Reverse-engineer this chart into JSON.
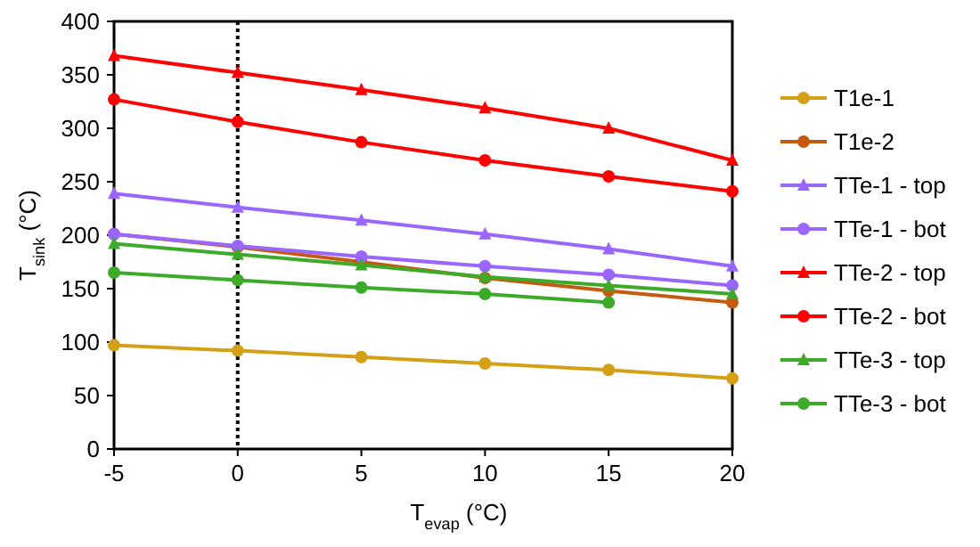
{
  "chart_data": {
    "type": "line",
    "xlabel": "T$_{evap}$ (°C)",
    "ylabel": "T$_{sink}$ (°C)",
    "x": [
      -5,
      0,
      5,
      10,
      15,
      20
    ],
    "xlim": [
      -5,
      20
    ],
    "xticks": [
      -5,
      0,
      5,
      10,
      15,
      20
    ],
    "ylim": [
      0,
      400
    ],
    "yticks": [
      0,
      50,
      100,
      150,
      200,
      250,
      300,
      350,
      400
    ],
    "grid": false,
    "legend": "right",
    "line_style": "solid",
    "ref_lines": [
      {
        "axis": "x",
        "value": 0,
        "line_style": "dotted",
        "color": "#000000"
      }
    ],
    "series": [
      {
        "name": "T1e-1",
        "color": "#d4a017",
        "marker": "circle",
        "values": [
          97,
          92,
          86,
          80,
          74,
          66
        ]
      },
      {
        "name": "T1e-2",
        "color": "#c55a11",
        "marker": "circle",
        "values": [
          201,
          189,
          175,
          160,
          148,
          137
        ]
      },
      {
        "name": "TTe-1 - top",
        "color": "#9966ff",
        "marker": "triangle",
        "values": [
          239,
          226,
          214,
          201,
          187,
          171
        ]
      },
      {
        "name": "TTe-1 - bot",
        "color": "#9966ff",
        "marker": "circle",
        "values": [
          201,
          190,
          180,
          171,
          163,
          153
        ]
      },
      {
        "name": "TTe-2 - top",
        "color": "#ff0000",
        "marker": "triangle",
        "values": [
          368,
          352,
          336,
          319,
          300,
          270
        ]
      },
      {
        "name": "TTe-2 - bot",
        "color": "#ff0000",
        "marker": "circle",
        "values": [
          327,
          306,
          287,
          270,
          255,
          241
        ]
      },
      {
        "name": "TTe-3 - top",
        "color": "#3daa2a",
        "marker": "triangle",
        "values": [
          192,
          182,
          172,
          161,
          153,
          145
        ]
      },
      {
        "name": "TTe-3 - bot",
        "color": "#3daa2a",
        "marker": "circle",
        "values": [
          165,
          158,
          151,
          145,
          137,
          null
        ]
      }
    ]
  }
}
